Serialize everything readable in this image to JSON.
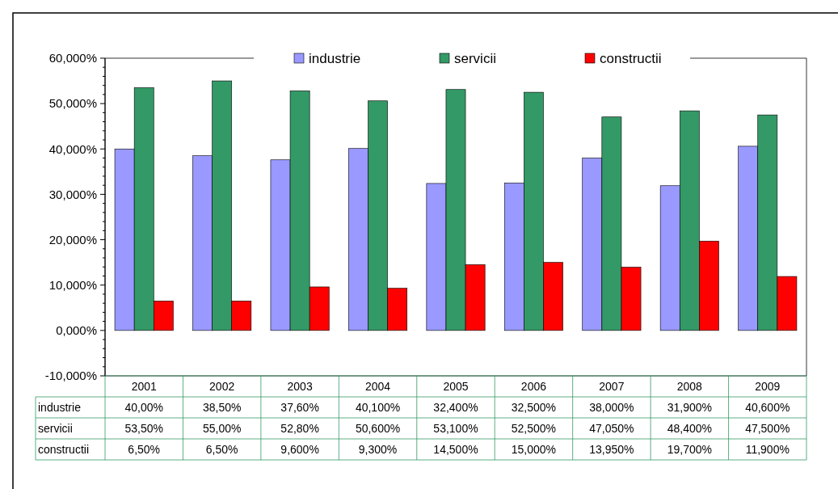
{
  "chart_data": {
    "type": "bar",
    "categories": [
      "2001",
      "2002",
      "2003",
      "2004",
      "2005",
      "2006",
      "2007",
      "2008",
      "2009"
    ],
    "series": [
      {
        "name": "industrie",
        "color": "#9999ff",
        "values": [
          40.0,
          38.5,
          37.6,
          40.1,
          32.4,
          32.5,
          38.0,
          31.9,
          40.6
        ],
        "value_labels": [
          "40,00%",
          "38,50%",
          "37,60%",
          "40,100%",
          "32,400%",
          "32,500%",
          "38,000%",
          "31,900%",
          "40,600%"
        ]
      },
      {
        "name": "servicii",
        "color": "#339966",
        "values": [
          53.5,
          55.0,
          52.8,
          50.6,
          53.1,
          52.5,
          47.05,
          48.4,
          47.5
        ],
        "value_labels": [
          "53,50%",
          "55,00%",
          "52,80%",
          "50,600%",
          "53,100%",
          "52,500%",
          "47,050%",
          "48,400%",
          "47,500%"
        ]
      },
      {
        "name": "constructii",
        "color": "#ff0000",
        "values": [
          6.5,
          6.5,
          9.6,
          9.3,
          14.5,
          15.0,
          13.95,
          19.7,
          11.9
        ],
        "value_labels": [
          "6,50%",
          "6,50%",
          "9,600%",
          "9,300%",
          "14,500%",
          "15,000%",
          "13,950%",
          "19,700%",
          "11,900%"
        ]
      }
    ],
    "ylim": [
      -10,
      60
    ],
    "yticks": [
      {
        "value": -10,
        "label": "-10,000%"
      },
      {
        "value": 0,
        "label": "0,000%"
      },
      {
        "value": 10,
        "label": "10,000%"
      },
      {
        "value": 20,
        "label": "20,000%"
      },
      {
        "value": 30,
        "label": "30,000%"
      },
      {
        "value": 40,
        "label": "40,000%"
      },
      {
        "value": 50,
        "label": "50,000%"
      },
      {
        "value": 60,
        "label": "60,000%"
      }
    ],
    "legend": "top",
    "grid": false
  }
}
